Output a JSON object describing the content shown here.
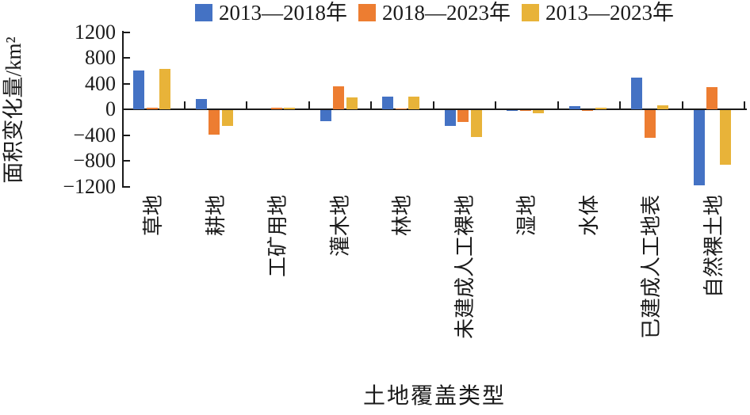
{
  "chart_data": {
    "type": "bar",
    "title": "",
    "categories": [
      "草地",
      "耕地",
      "工矿用地",
      "灌木地",
      "林地",
      "未建成人工裸地",
      "湿地",
      "水体",
      "已建成人工地表",
      "自然裸土地"
    ],
    "series": [
      {
        "name": "2013—2018年",
        "color": "#4472C4",
        "values": [
          600,
          165,
          0,
          -170,
          195,
          -240,
          -10,
          50,
          490,
          -1170
        ]
      },
      {
        "name": "2018—2023年",
        "color": "#ED7D31",
        "values": [
          25,
          -385,
          30,
          360,
          5,
          -190,
          -15,
          -10,
          -430,
          350
        ]
      },
      {
        "name": "2013—2023年",
        "color": "#E8B339",
        "values": [
          625,
          -240,
          25,
          190,
          195,
          -420,
          -55,
          25,
          60,
          -850
        ]
      }
    ],
    "xlabel": "土地覆盖类型",
    "ylabel": "面积变化量/km²",
    "ylim": [
      -1200,
      1200
    ],
    "ytick_interval": 400,
    "ytick_labels": [
      "1200",
      "800",
      "400",
      "0",
      "−400",
      "−800",
      "−1200"
    ],
    "grid": false,
    "legend_position": "top",
    "axis_color": "#1a1a1a"
  }
}
